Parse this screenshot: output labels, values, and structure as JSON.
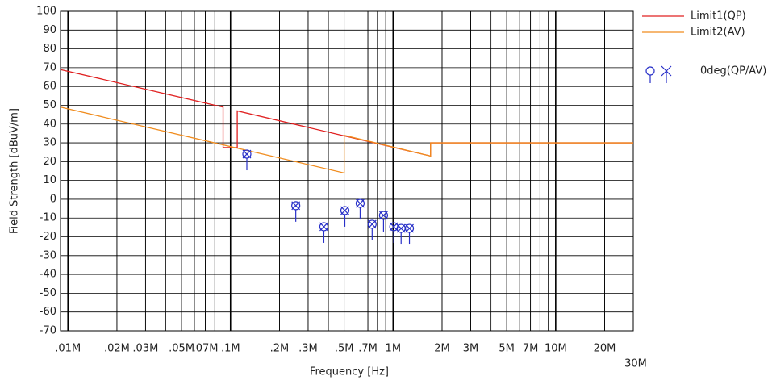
{
  "chart_data": {
    "type": "line",
    "xlabel": "Frequency [Hz]",
    "ylabel": "Field Strength [dBuV/m]",
    "xscale": "log",
    "xlim": [
      9000,
      30000000
    ],
    "ylim": [
      -70,
      100
    ],
    "xticks": [
      {
        "value": 10000,
        "label": ".01M"
      },
      {
        "value": 20000,
        "label": ".02M"
      },
      {
        "value": 30000,
        "label": ".03M"
      },
      {
        "value": 50000,
        "label": ".05M"
      },
      {
        "value": 70000,
        "label": ".07M"
      },
      {
        "value": 100000,
        "label": ".1M"
      },
      {
        "value": 200000,
        "label": ".2M"
      },
      {
        "value": 300000,
        "label": ".3M"
      },
      {
        "value": 500000,
        "label": ".5M"
      },
      {
        "value": 700000,
        "label": ".7M"
      },
      {
        "value": 1000000,
        "label": "1M"
      },
      {
        "value": 2000000,
        "label": "2M"
      },
      {
        "value": 3000000,
        "label": "3M"
      },
      {
        "value": 5000000,
        "label": "5M"
      },
      {
        "value": 7000000,
        "label": "7M"
      },
      {
        "value": 10000000,
        "label": "10M"
      },
      {
        "value": 20000000,
        "label": "20M"
      },
      {
        "value": 30000000,
        "label": "30M"
      }
    ],
    "yticks": [
      -70,
      -60,
      -50,
      -40,
      -30,
      -20,
      -10,
      0,
      10,
      20,
      30,
      40,
      50,
      60,
      70,
      80,
      90,
      100
    ],
    "grid": true,
    "minor_grid": true,
    "legend": "right",
    "series": [
      {
        "name": "Limit1(QP)",
        "color": "#e02020",
        "x": [
          9000,
          90000,
          90000,
          110000,
          110000,
          1700000,
          1700000,
          30000000
        ],
        "values": [
          69,
          49,
          27.5,
          27.5,
          47,
          23,
          30,
          30
        ]
      },
      {
        "name": "Limit2(AV)",
        "color": "#f08c1e",
        "x": [
          9000,
          500000,
          500000,
          1700000,
          1700000,
          30000000
        ],
        "values": [
          49,
          14,
          34,
          23,
          30,
          30
        ]
      },
      {
        "name": "0deg(QP/AV)",
        "color": "#2830c8",
        "type": "scatter",
        "x": [
          126000,
          252000,
          375000,
          505000,
          627000,
          743000,
          873000,
          1010000,
          1120000,
          1260000
        ],
        "values": [
          24,
          -3.4,
          -14.6,
          -6,
          -2.2,
          -13.3,
          -8.6,
          -14.6,
          -15.5,
          -15.5
        ],
        "av_values": [
          24,
          -3.4,
          -14.6,
          -6,
          -2.2,
          -13.3,
          -8.6,
          -14.6,
          -15.5,
          -15.5
        ]
      }
    ]
  }
}
